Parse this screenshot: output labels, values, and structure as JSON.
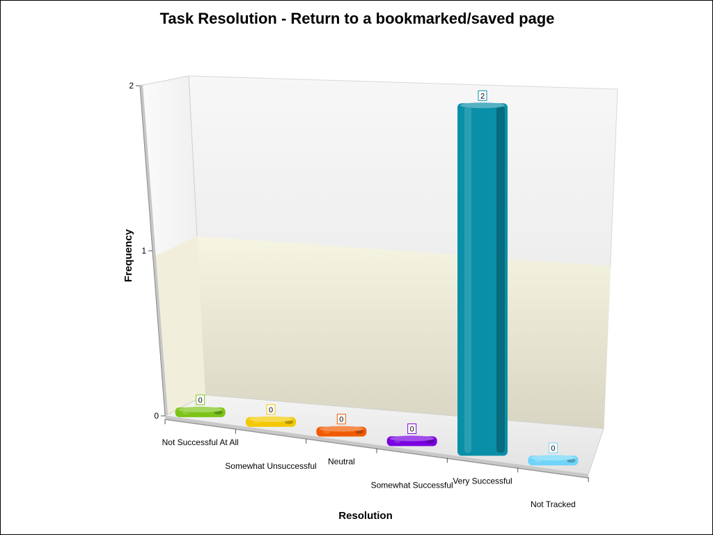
{
  "chart_data": {
    "type": "bar",
    "title": "Task Resolution - Return to a bookmarked/saved page",
    "xlabel": "Resolution",
    "ylabel": "Frequency",
    "categories": [
      "Not Successful At All",
      "Somewhat Unsuccessful",
      "Neutral",
      "Somewhat Successful",
      "Very Successful",
      "Not Tracked"
    ],
    "values": [
      0,
      0,
      0,
      0,
      2,
      0
    ],
    "ylim": [
      0,
      2
    ],
    "yticks": [
      "0",
      "1",
      "2"
    ],
    "data_labels": [
      "0",
      "0",
      "0",
      "0",
      "2",
      "0"
    ],
    "colors": [
      "#7CC418",
      "#F2C800",
      "#F05A00",
      "#7A00E0",
      "#0A8FA8",
      "#6FD4F8"
    ],
    "grid": false,
    "legend": "none",
    "style": "3d"
  }
}
